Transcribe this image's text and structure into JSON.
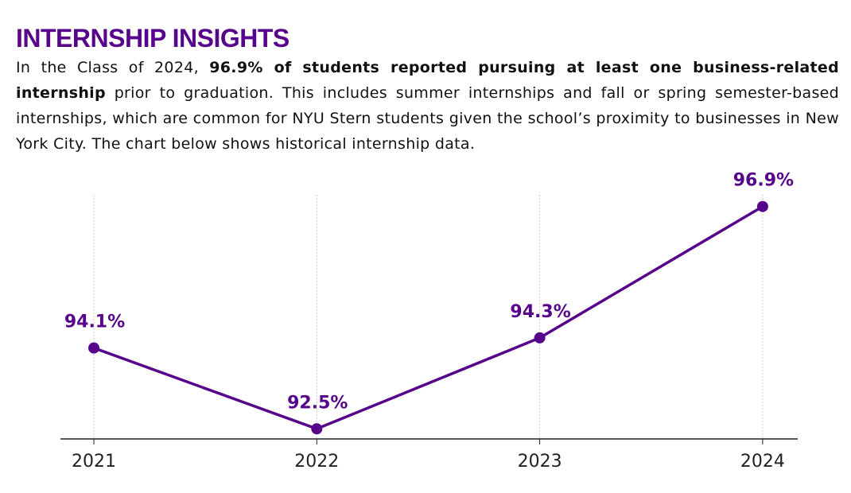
{
  "header": {
    "title": "INTERNSHIP INSIGHTS"
  },
  "intro": [
    "In the Class of 2024, ",
    "96.9% of students reported pursuing at least one business-related internship",
    " prior to graduation. This includes summer internships and fall or spring semester-based internships, which are common for NYU Stern students given the school’s proximity to businesses in New York City. The chart below shows historical internship data."
  ],
  "chart_data": {
    "type": "line",
    "categories": [
      "2021",
      "2022",
      "2023",
      "2024"
    ],
    "values": [
      94.1,
      92.5,
      94.3,
      96.9
    ],
    "value_labels": [
      "94.1%",
      "92.5%",
      "94.3%",
      "96.9%"
    ],
    "color": "#57068c",
    "ylim": [
      92.3,
      97.1
    ],
    "grid": "x"
  }
}
